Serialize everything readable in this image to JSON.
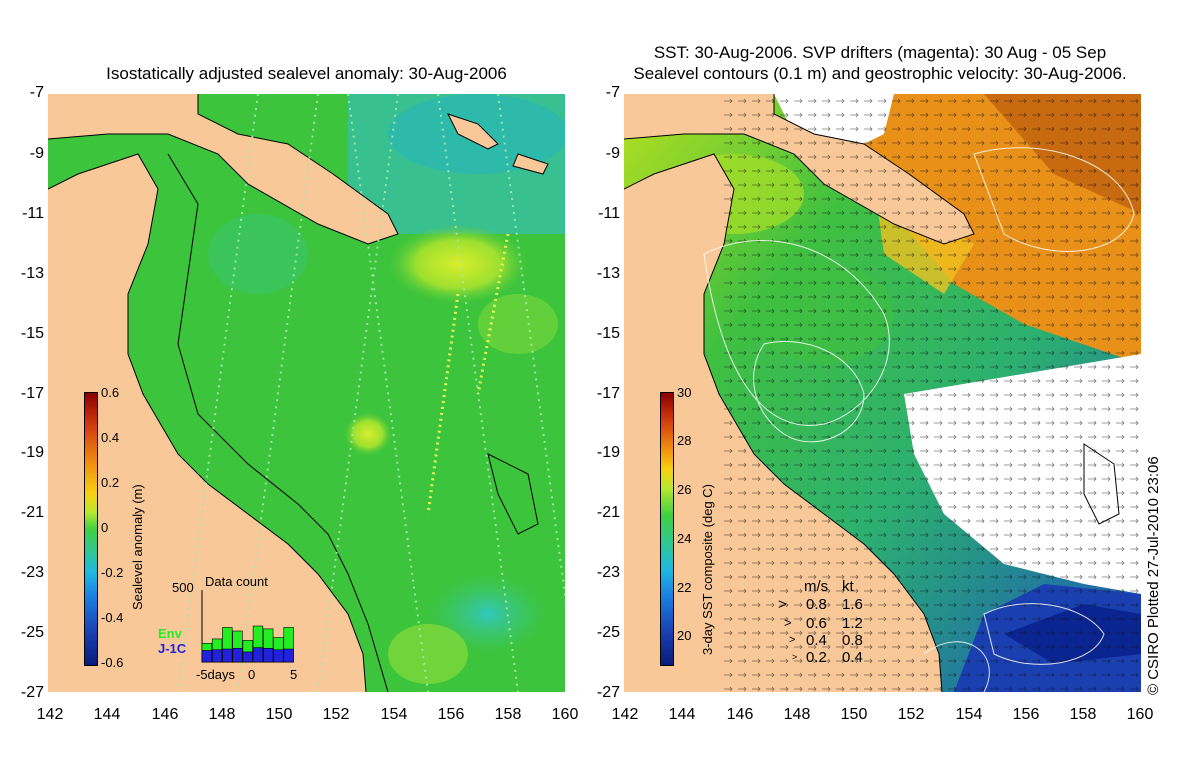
{
  "left_panel": {
    "title": "Isostatically adjusted sealevel anomaly: 30-Aug-2006",
    "colorbar": {
      "label": "Sealevel anomaly (m)",
      "ticks": [
        "0.6",
        "0.4",
        "0.2",
        "0",
        "-0.2",
        "-0.4",
        "-0.6"
      ],
      "range": [
        -0.6,
        0.6
      ]
    },
    "data_count": {
      "title": "Data count",
      "ymax_label": "500",
      "legend": [
        {
          "name": "Env",
          "color": "#22ee22"
        },
        {
          "name": "J-1C",
          "color": "#2222dd"
        }
      ],
      "x_ticks": [
        "-5days",
        "0",
        "5"
      ],
      "env_counts": [
        130,
        160,
        240,
        215,
        150,
        250,
        230,
        170,
        240
      ],
      "j1c_counts": [
        80,
        85,
        90,
        95,
        70,
        100,
        95,
        85,
        90
      ]
    }
  },
  "right_panel": {
    "title_line1": "SST: 30-Aug-2006. SVP drifters (magenta): 30 Aug - 05 Sep",
    "title_line2": "Sealevel contours (0.1 m) and geostrophic velocity: 30-Aug-2006.",
    "colorbar": {
      "label": "3-day SST composite (deg C)",
      "ticks": [
        "30",
        "28",
        "26",
        "24",
        "22",
        "20"
      ],
      "range": [
        19,
        30
      ]
    },
    "velocity_legend": {
      "header_ms": "m/s",
      "header_kt": "kt",
      "rows": [
        {
          "ms": "0.8",
          "kt": "1.6"
        },
        {
          "ms": "0.6",
          "kt": "1.2"
        },
        {
          "ms": "0.4",
          "kt": "0.8"
        },
        {
          "ms": "0.2",
          "kt": "0.4"
        }
      ]
    },
    "credit": "© CSIRO Plotted 27-Jul-2010 23:06"
  },
  "axes": {
    "y_ticks": [
      "-7",
      "-9",
      "-11",
      "-13",
      "-15",
      "-17",
      "-19",
      "-21",
      "-23",
      "-25",
      "-27"
    ],
    "x_ticks": [
      "142",
      "144",
      "146",
      "148",
      "150",
      "152",
      "154",
      "156",
      "158",
      "160"
    ],
    "lon_range": [
      142,
      160
    ],
    "lat_range": [
      -27,
      -7
    ]
  },
  "colors": {
    "land": "#f8c898",
    "ocean_sla": "#3cc43c",
    "sst_warm": "#e88a10",
    "sst_cool": "#1a3fb0",
    "cloud": "#ffffff"
  }
}
